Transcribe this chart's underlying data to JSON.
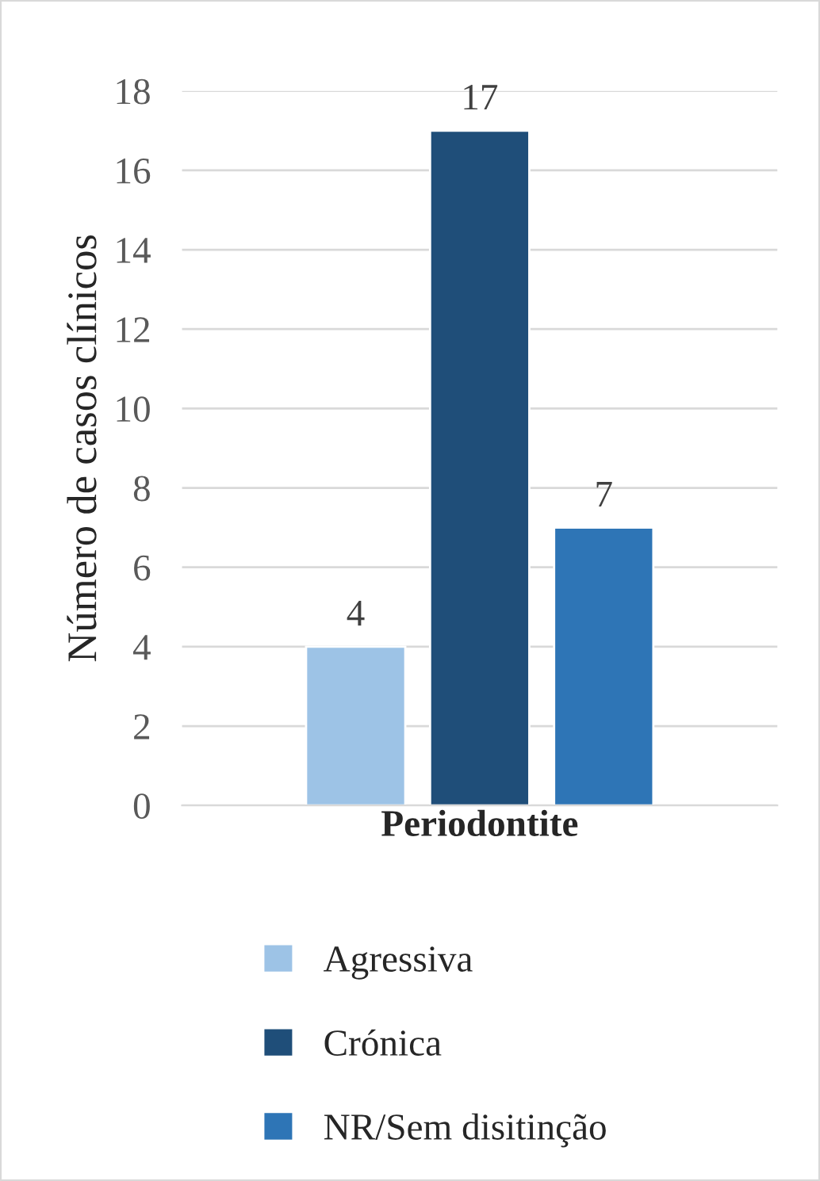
{
  "chart_data": {
    "type": "bar",
    "xlabel": "Periodontite",
    "ylabel": "Número de casos clínicos",
    "categories": [
      null,
      null,
      null
    ],
    "series": [
      {
        "name": "Agressiva",
        "color": "#9dc3e6",
        "values": [
          4,
          null,
          null
        ]
      },
      {
        "name": "Crónica",
        "color": "#1f4e79",
        "values": [
          null,
          17,
          null
        ]
      },
      {
        "name": "NR/Sem disitinção",
        "color": "#2e75b6",
        "values": [
          null,
          null,
          7
        ]
      }
    ],
    "ylim": [
      0,
      18
    ],
    "yticks": [
      0,
      2,
      4,
      6,
      8,
      10,
      12,
      14,
      16,
      18
    ],
    "grid": "y",
    "legend": "bottom",
    "data_labels": true
  }
}
